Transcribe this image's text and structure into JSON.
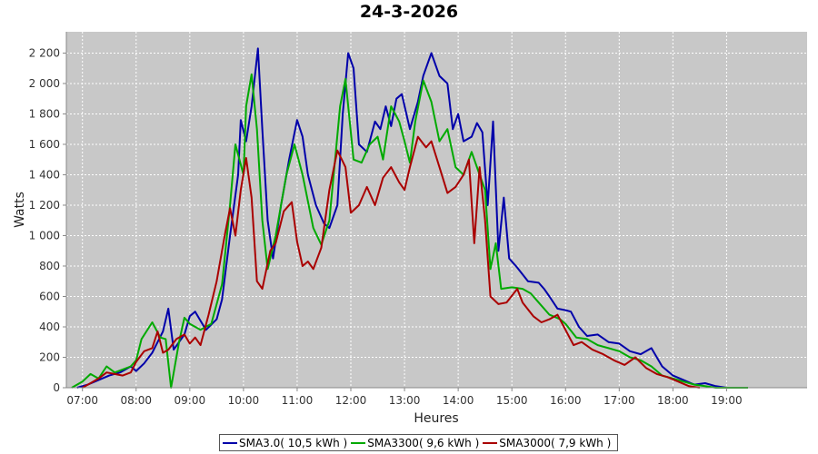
{
  "chart_data": {
    "type": "line",
    "title": "24-3-2026",
    "xlabel": "Heures",
    "ylabel": "Watts",
    "xlim": [
      6.7,
      20.5
    ],
    "ylim": [
      0,
      2340
    ],
    "x_ticks": [
      {
        "v": 7,
        "label": "07:00"
      },
      {
        "v": 8,
        "label": "08:00"
      },
      {
        "v": 9,
        "label": "09:00"
      },
      {
        "v": 10,
        "label": "10:00"
      },
      {
        "v": 11,
        "label": "11:00"
      },
      {
        "v": 12,
        "label": "12:00"
      },
      {
        "v": 13,
        "label": "13:00"
      },
      {
        "v": 14,
        "label": "14:00"
      },
      {
        "v": 15,
        "label": "15:00"
      },
      {
        "v": 16,
        "label": "16:00"
      },
      {
        "v": 17,
        "label": "17:00"
      },
      {
        "v": 18,
        "label": "18:00"
      },
      {
        "v": 19,
        "label": "19:00"
      }
    ],
    "y_ticks": [
      {
        "v": 0,
        "label": "0"
      },
      {
        "v": 200,
        "label": "200"
      },
      {
        "v": 400,
        "label": "400"
      },
      {
        "v": 600,
        "label": "600"
      },
      {
        "v": 800,
        "label": "800"
      },
      {
        "v": 1000,
        "label": "1 000"
      },
      {
        "v": 1200,
        "label": "1 200"
      },
      {
        "v": 1400,
        "label": "1 400"
      },
      {
        "v": 1600,
        "label": "1 600"
      },
      {
        "v": 1800,
        "label": "1 800"
      },
      {
        "v": 2000,
        "label": "2 000"
      },
      {
        "v": 2200,
        "label": "2 200"
      }
    ],
    "grid": true,
    "legend_position": "bottom",
    "series": [
      {
        "name": "SMA3.0( 10,5 kWh )",
        "color": "#0000aa",
        "points": [
          [
            6.9,
            0
          ],
          [
            7.1,
            20
          ],
          [
            7.3,
            50
          ],
          [
            7.5,
            80
          ],
          [
            7.7,
            100
          ],
          [
            7.9,
            140
          ],
          [
            8.0,
            110
          ],
          [
            8.15,
            160
          ],
          [
            8.3,
            230
          ],
          [
            8.5,
            370
          ],
          [
            8.6,
            520
          ],
          [
            8.7,
            250
          ],
          [
            8.9,
            350
          ],
          [
            9.0,
            470
          ],
          [
            9.1,
            500
          ],
          [
            9.2,
            440
          ],
          [
            9.3,
            380
          ],
          [
            9.5,
            450
          ],
          [
            9.6,
            580
          ],
          [
            9.75,
            1000
          ],
          [
            9.9,
            1400
          ],
          [
            9.95,
            1760
          ],
          [
            10.05,
            1620
          ],
          [
            10.15,
            1850
          ],
          [
            10.27,
            2230
          ],
          [
            10.35,
            1700
          ],
          [
            10.45,
            1100
          ],
          [
            10.55,
            850
          ],
          [
            10.7,
            1200
          ],
          [
            10.85,
            1500
          ],
          [
            11.0,
            1760
          ],
          [
            11.1,
            1650
          ],
          [
            11.2,
            1400
          ],
          [
            11.35,
            1200
          ],
          [
            11.5,
            1080
          ],
          [
            11.6,
            1050
          ],
          [
            11.75,
            1200
          ],
          [
            11.85,
            1800
          ],
          [
            11.95,
            2200
          ],
          [
            12.05,
            2100
          ],
          [
            12.15,
            1600
          ],
          [
            12.3,
            1550
          ],
          [
            12.45,
            1750
          ],
          [
            12.55,
            1700
          ],
          [
            12.65,
            1850
          ],
          [
            12.75,
            1720
          ],
          [
            12.85,
            1900
          ],
          [
            12.95,
            1930
          ],
          [
            13.1,
            1700
          ],
          [
            13.25,
            1880
          ],
          [
            13.35,
            2050
          ],
          [
            13.5,
            2200
          ],
          [
            13.65,
            2050
          ],
          [
            13.8,
            2000
          ],
          [
            13.9,
            1700
          ],
          [
            14.0,
            1800
          ],
          [
            14.1,
            1620
          ],
          [
            14.25,
            1650
          ],
          [
            14.35,
            1740
          ],
          [
            14.45,
            1680
          ],
          [
            14.55,
            1200
          ],
          [
            14.65,
            1750
          ],
          [
            14.75,
            900
          ],
          [
            14.85,
            1250
          ],
          [
            14.95,
            850
          ],
          [
            15.1,
            790
          ],
          [
            15.3,
            700
          ],
          [
            15.5,
            690
          ],
          [
            15.6,
            650
          ],
          [
            15.7,
            600
          ],
          [
            15.85,
            520
          ],
          [
            16.0,
            510
          ],
          [
            16.1,
            500
          ],
          [
            16.25,
            400
          ],
          [
            16.4,
            340
          ],
          [
            16.6,
            350
          ],
          [
            16.8,
            300
          ],
          [
            17.0,
            290
          ],
          [
            17.2,
            240
          ],
          [
            17.4,
            220
          ],
          [
            17.6,
            260
          ],
          [
            17.8,
            140
          ],
          [
            18.0,
            80
          ],
          [
            18.2,
            50
          ],
          [
            18.4,
            20
          ],
          [
            18.6,
            30
          ],
          [
            18.8,
            10
          ],
          [
            19.0,
            0
          ]
        ]
      },
      {
        "name": "SMA3300( 9,6 kWh )",
        "color": "#00aa00",
        "points": [
          [
            6.8,
            0
          ],
          [
            7.0,
            40
          ],
          [
            7.15,
            90
          ],
          [
            7.3,
            60
          ],
          [
            7.45,
            140
          ],
          [
            7.6,
            100
          ],
          [
            7.75,
            120
          ],
          [
            7.9,
            140
          ],
          [
            8.0,
            180
          ],
          [
            8.1,
            320
          ],
          [
            8.3,
            430
          ],
          [
            8.45,
            330
          ],
          [
            8.55,
            320
          ],
          [
            8.65,
            0
          ],
          [
            8.8,
            300
          ],
          [
            8.9,
            460
          ],
          [
            9.0,
            420
          ],
          [
            9.2,
            380
          ],
          [
            9.4,
            420
          ],
          [
            9.6,
            680
          ],
          [
            9.75,
            1200
          ],
          [
            9.85,
            1600
          ],
          [
            10.0,
            1400
          ],
          [
            10.05,
            1850
          ],
          [
            10.15,
            2060
          ],
          [
            10.25,
            1700
          ],
          [
            10.35,
            1100
          ],
          [
            10.45,
            780
          ],
          [
            10.6,
            1000
          ],
          [
            10.8,
            1400
          ],
          [
            10.95,
            1600
          ],
          [
            11.1,
            1400
          ],
          [
            11.3,
            1050
          ],
          [
            11.45,
            940
          ],
          [
            11.6,
            1100
          ],
          [
            11.8,
            1850
          ],
          [
            11.9,
            2030
          ],
          [
            12.05,
            1500
          ],
          [
            12.2,
            1480
          ],
          [
            12.35,
            1600
          ],
          [
            12.5,
            1650
          ],
          [
            12.6,
            1500
          ],
          [
            12.75,
            1850
          ],
          [
            12.9,
            1750
          ],
          [
            13.0,
            1620
          ],
          [
            13.1,
            1480
          ],
          [
            13.2,
            1750
          ],
          [
            13.35,
            2020
          ],
          [
            13.5,
            1880
          ],
          [
            13.65,
            1620
          ],
          [
            13.8,
            1700
          ],
          [
            13.95,
            1450
          ],
          [
            14.1,
            1400
          ],
          [
            14.25,
            1550
          ],
          [
            14.4,
            1400
          ],
          [
            14.5,
            1300
          ],
          [
            14.6,
            780
          ],
          [
            14.7,
            950
          ],
          [
            14.8,
            650
          ],
          [
            15.0,
            660
          ],
          [
            15.2,
            650
          ],
          [
            15.35,
            620
          ],
          [
            15.5,
            560
          ],
          [
            15.7,
            480
          ],
          [
            15.9,
            450
          ],
          [
            16.0,
            420
          ],
          [
            16.2,
            330
          ],
          [
            16.4,
            320
          ],
          [
            16.6,
            280
          ],
          [
            16.8,
            260
          ],
          [
            17.0,
            240
          ],
          [
            17.2,
            200
          ],
          [
            17.4,
            180
          ],
          [
            17.6,
            140
          ],
          [
            17.8,
            80
          ],
          [
            18.0,
            60
          ],
          [
            18.2,
            40
          ],
          [
            18.4,
            20
          ],
          [
            18.6,
            10
          ],
          [
            18.8,
            0
          ],
          [
            19.4,
            0
          ]
        ]
      },
      {
        "name": "SMA3000( 7,9 kWh )",
        "color": "#aa0000",
        "points": [
          [
            7.0,
            0
          ],
          [
            7.15,
            30
          ],
          [
            7.3,
            60
          ],
          [
            7.45,
            100
          ],
          [
            7.6,
            90
          ],
          [
            7.75,
            80
          ],
          [
            7.9,
            100
          ],
          [
            8.0,
            170
          ],
          [
            8.15,
            240
          ],
          [
            8.3,
            260
          ],
          [
            8.4,
            370
          ],
          [
            8.5,
            230
          ],
          [
            8.6,
            250
          ],
          [
            8.75,
            320
          ],
          [
            8.9,
            350
          ],
          [
            9.0,
            290
          ],
          [
            9.1,
            330
          ],
          [
            9.2,
            280
          ],
          [
            9.35,
            480
          ],
          [
            9.5,
            700
          ],
          [
            9.65,
            1000
          ],
          [
            9.75,
            1180
          ],
          [
            9.85,
            1000
          ],
          [
            9.95,
            1300
          ],
          [
            10.05,
            1510
          ],
          [
            10.15,
            1250
          ],
          [
            10.25,
            700
          ],
          [
            10.35,
            650
          ],
          [
            10.5,
            900
          ],
          [
            10.6,
            950
          ],
          [
            10.75,
            1160
          ],
          [
            10.9,
            1220
          ],
          [
            11.0,
            960
          ],
          [
            11.1,
            800
          ],
          [
            11.2,
            830
          ],
          [
            11.3,
            780
          ],
          [
            11.45,
            920
          ],
          [
            11.6,
            1300
          ],
          [
            11.75,
            1560
          ],
          [
            11.9,
            1450
          ],
          [
            12.0,
            1150
          ],
          [
            12.15,
            1200
          ],
          [
            12.3,
            1320
          ],
          [
            12.45,
            1200
          ],
          [
            12.6,
            1380
          ],
          [
            12.75,
            1450
          ],
          [
            12.9,
            1350
          ],
          [
            13.0,
            1300
          ],
          [
            13.1,
            1450
          ],
          [
            13.25,
            1650
          ],
          [
            13.4,
            1580
          ],
          [
            13.5,
            1620
          ],
          [
            13.65,
            1450
          ],
          [
            13.8,
            1280
          ],
          [
            13.95,
            1320
          ],
          [
            14.1,
            1400
          ],
          [
            14.2,
            1500
          ],
          [
            14.3,
            950
          ],
          [
            14.4,
            1450
          ],
          [
            14.5,
            1100
          ],
          [
            14.6,
            600
          ],
          [
            14.75,
            550
          ],
          [
            14.9,
            560
          ],
          [
            15.1,
            650
          ],
          [
            15.2,
            560
          ],
          [
            15.4,
            470
          ],
          [
            15.55,
            430
          ],
          [
            15.7,
            450
          ],
          [
            15.85,
            480
          ],
          [
            16.0,
            380
          ],
          [
            16.15,
            280
          ],
          [
            16.3,
            300
          ],
          [
            16.5,
            250
          ],
          [
            16.7,
            220
          ],
          [
            16.9,
            180
          ],
          [
            17.1,
            150
          ],
          [
            17.3,
            200
          ],
          [
            17.5,
            130
          ],
          [
            17.7,
            90
          ],
          [
            17.9,
            70
          ],
          [
            18.1,
            40
          ],
          [
            18.3,
            10
          ],
          [
            18.5,
            0
          ]
        ]
      }
    ]
  }
}
